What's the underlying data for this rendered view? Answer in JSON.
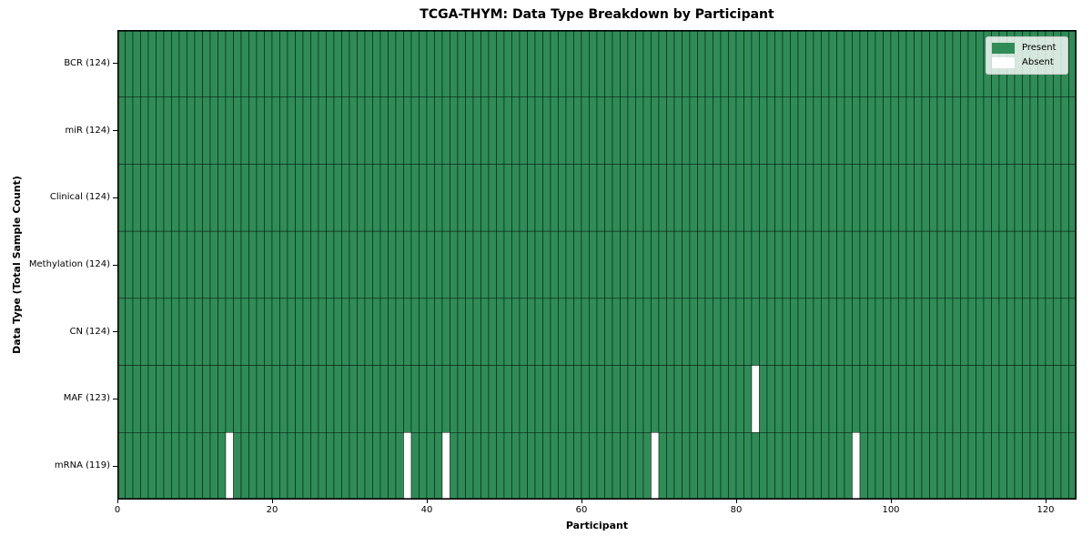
{
  "chart_data": {
    "type": "heatmap",
    "title": "TCGA-THYM: Data Type Breakdown by Participant",
    "xlabel": "Participant",
    "ylabel": "Data Type (Total Sample Count)",
    "n_participants": 124,
    "x_ticks": [
      0,
      20,
      40,
      60,
      80,
      100,
      120
    ],
    "x_range": [
      0,
      124
    ],
    "grid": false,
    "legend_position": "upper right",
    "rows": [
      {
        "label": "BCR (124)",
        "data_type": "BCR",
        "present_count": 124,
        "absent_participants": []
      },
      {
        "label": "miR (124)",
        "data_type": "miR",
        "present_count": 124,
        "absent_participants": []
      },
      {
        "label": "Clinical (124)",
        "data_type": "Clinical",
        "present_count": 124,
        "absent_participants": []
      },
      {
        "label": "Methylation (124)",
        "data_type": "Methylation",
        "present_count": 124,
        "absent_participants": []
      },
      {
        "label": "CN (124)",
        "data_type": "CN",
        "present_count": 124,
        "absent_participants": []
      },
      {
        "label": "MAF (123)",
        "data_type": "MAF",
        "present_count": 123,
        "absent_participants": [
          82
        ]
      },
      {
        "label": "mRNA (119)",
        "data_type": "mRNA",
        "present_count": 119,
        "absent_participants": [
          14,
          37,
          42,
          69,
          95
        ]
      }
    ],
    "legend": [
      {
        "label": "Present",
        "color": "#2f8c57"
      },
      {
        "label": "Absent",
        "color": "#ffffff"
      }
    ],
    "colors": {
      "present": "#2f8c57",
      "absent": "#ffffff",
      "cell_border": "#000000",
      "spine": "#000000",
      "background": "#ffffff"
    }
  }
}
